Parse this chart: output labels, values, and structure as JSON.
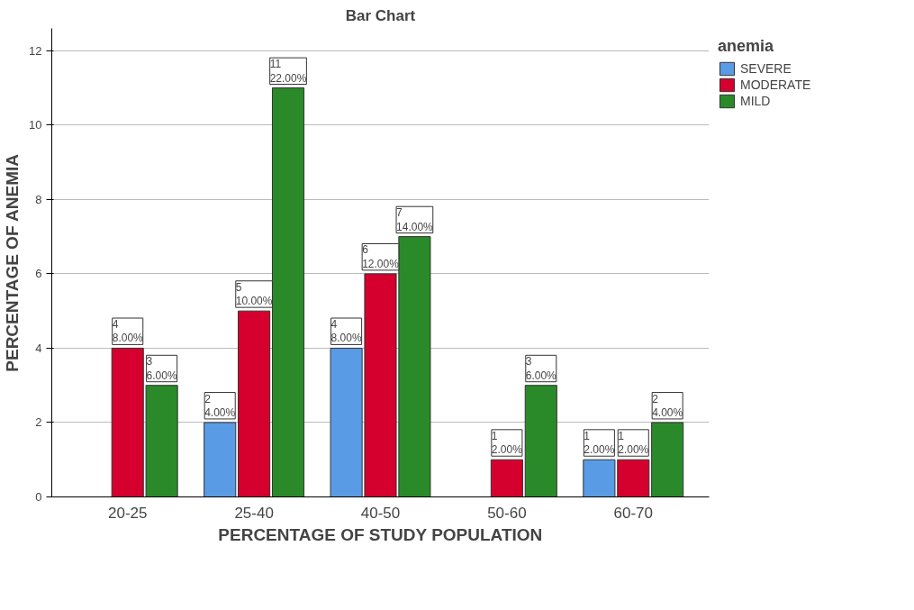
{
  "chart_data": {
    "type": "bar",
    "title": "Bar Chart",
    "xlabel": "PERCENTAGE OF STUDY POPULATION",
    "ylabel": "PERCENTAGE OF ANEMIA",
    "legend_title": "anemia",
    "categories": [
      "20-25",
      "25-40",
      "40-50",
      "50-60",
      "60-70"
    ],
    "series": [
      {
        "name": "SEVERE",
        "color": "#5a9be6",
        "values": [
          null,
          2,
          4,
          null,
          1
        ],
        "value_labels": [
          null,
          "2\n4.00%",
          "4\n8.00%",
          null,
          "1\n2.00%"
        ]
      },
      {
        "name": "MODERATE",
        "color": "#d5002d",
        "values": [
          4,
          5,
          6,
          1,
          1
        ],
        "value_labels": [
          "4\n8.00%",
          "5\n10.00%",
          "6\n12.00%",
          "1\n2.00%",
          "1\n2.00%"
        ]
      },
      {
        "name": "MILD",
        "color": "#2a8a2a",
        "values": [
          3,
          11,
          7,
          3,
          2
        ],
        "value_labels": [
          "3\n6.00%",
          "11\n22.00%",
          "7\n14.00%",
          "3\n6.00%",
          "2\n4.00%"
        ]
      }
    ],
    "ylim": [
      0,
      12.6
    ],
    "yticks": [
      0,
      2,
      4,
      6,
      8,
      10,
      12
    ],
    "grid": "y",
    "legend": "top right"
  }
}
